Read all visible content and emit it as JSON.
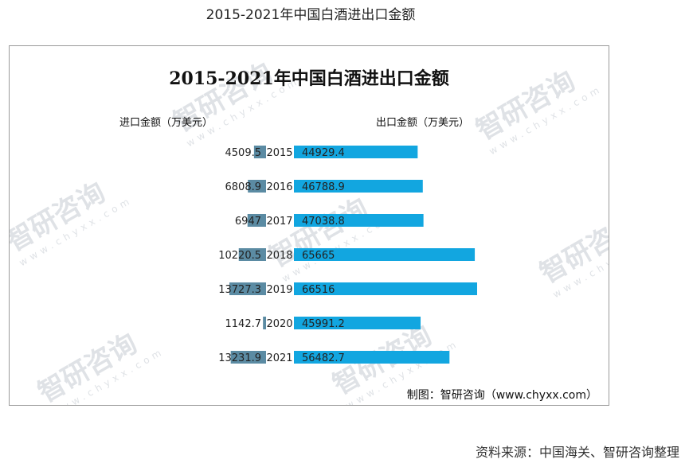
{
  "page": {
    "title": "2015-2021年中国白酒进出口金额",
    "source": "资料来源：中国海关、智研咨询整理"
  },
  "chart": {
    "credit": "制图：智研咨询（www.chyxx.com）",
    "watermark_text": "智研咨询",
    "watermark_url": "www.chyxx.com"
  },
  "colors": {
    "import_bar": "#5b8ba3",
    "export_bar": "#12a6e0",
    "text": "#222222"
  },
  "chart_data": {
    "type": "bar",
    "orientation": "horizontal-diverging",
    "title": "2015-2021年中国白酒进出口金额",
    "categories": [
      "2015",
      "2016",
      "2017",
      "2018",
      "2019",
      "2020",
      "2021"
    ],
    "series": [
      {
        "name": "进口金额（万美元）",
        "values": [
          4509.5,
          6808.9,
          6947,
          10220.5,
          13727.3,
          1142.7,
          13231.9
        ]
      },
      {
        "name": "出口金额（万美元）",
        "values": [
          44929.4,
          46788.9,
          47038.8,
          65665,
          66516,
          45991.2,
          56482.7
        ]
      }
    ]
  }
}
